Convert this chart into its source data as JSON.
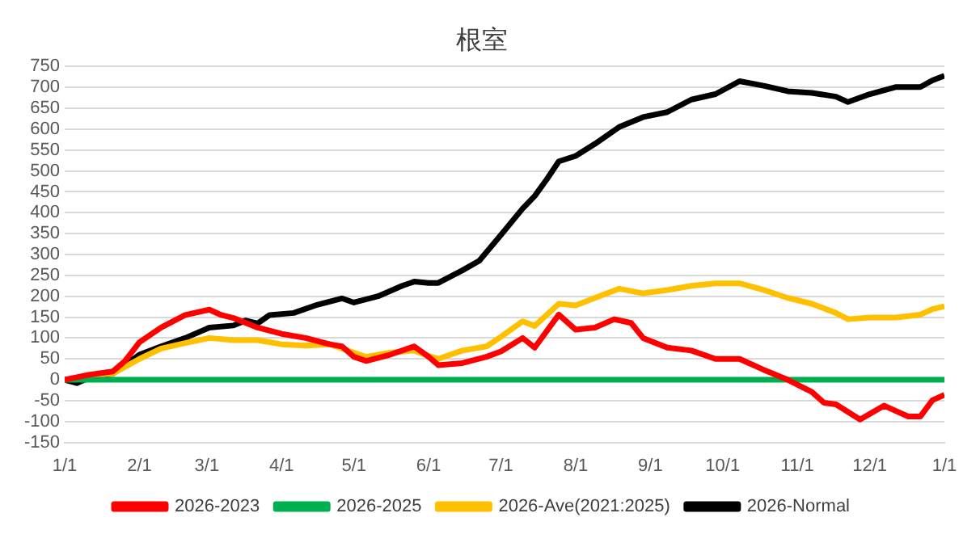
{
  "chart_data": {
    "type": "line",
    "title": "根室",
    "xlim": [
      "2026-01-01",
      "2027-01-01"
    ],
    "xticks": [
      {
        "value": "2026-01-01",
        "label": "1/1"
      },
      {
        "value": "2026-02-01",
        "label": "2/1"
      },
      {
        "value": "2026-03-01",
        "label": "3/1"
      },
      {
        "value": "2026-04-01",
        "label": "4/1"
      },
      {
        "value": "2026-05-01",
        "label": "5/1"
      },
      {
        "value": "2026-06-01",
        "label": "6/1"
      },
      {
        "value": "2026-07-01",
        "label": "7/1"
      },
      {
        "value": "2026-08-01",
        "label": "8/1"
      },
      {
        "value": "2026-09-01",
        "label": "9/1"
      },
      {
        "value": "2026-10-01",
        "label": "10/1"
      },
      {
        "value": "2026-11-01",
        "label": "11/1"
      },
      {
        "value": "2026-12-01",
        "label": "12/1"
      },
      {
        "value": "2027-01-01",
        "label": "1/1"
      }
    ],
    "ylim": [
      -150,
      750
    ],
    "yticks": [
      -150,
      -100,
      -50,
      0,
      50,
      100,
      150,
      200,
      250,
      300,
      350,
      400,
      450,
      500,
      550,
      600,
      650,
      700,
      750
    ],
    "grid": "y",
    "legend": "bottom",
    "marker": "none",
    "line_style": "solid",
    "series": [
      {
        "name": "2026-2023",
        "color": "#ff0000",
        "x": [
          "2026-01-01",
          "2026-01-11",
          "2026-01-21",
          "2026-01-26",
          "2026-02-01",
          "2026-02-10",
          "2026-02-20",
          "2026-03-02",
          "2026-03-07",
          "2026-03-12",
          "2026-03-22",
          "2026-04-01",
          "2026-04-11",
          "2026-04-21",
          "2026-04-26",
          "2026-05-01",
          "2026-05-06",
          "2026-05-16",
          "2026-05-26",
          "2026-06-01",
          "2026-06-05",
          "2026-06-15",
          "2026-06-25",
          "2026-07-01",
          "2026-07-10",
          "2026-07-15",
          "2026-07-25",
          "2026-08-01",
          "2026-08-09",
          "2026-08-17",
          "2026-08-24",
          "2026-08-29",
          "2026-09-08",
          "2026-09-18",
          "2026-09-28",
          "2026-10-08",
          "2026-10-18",
          "2026-10-28",
          "2026-11-07",
          "2026-11-12",
          "2026-11-17",
          "2026-11-27",
          "2026-12-07",
          "2026-12-17",
          "2026-12-22",
          "2026-12-27",
          "2027-01-01"
        ],
        "values": [
          0,
          12,
          20,
          45,
          90,
          125,
          155,
          168,
          155,
          148,
          125,
          110,
          100,
          85,
          80,
          55,
          45,
          60,
          80,
          55,
          35,
          40,
          55,
          68,
          100,
          77,
          156,
          120,
          125,
          145,
          136,
          100,
          77,
          70,
          50,
          50,
          24,
          0,
          -29,
          -55,
          -59,
          -95,
          -62,
          -88,
          -88,
          -49,
          -36
        ]
      },
      {
        "name": "2026-2025",
        "color": "#00b050",
        "x": [
          "2026-01-01",
          "2027-01-01"
        ],
        "values": [
          0,
          0
        ]
      },
      {
        "name": "2026-Ave(2021:2025)",
        "color": "#ffc000",
        "x": [
          "2026-01-01",
          "2026-01-11",
          "2026-01-21",
          "2026-02-01",
          "2026-02-10",
          "2026-02-20",
          "2026-03-02",
          "2026-03-12",
          "2026-03-22",
          "2026-04-01",
          "2026-04-11",
          "2026-04-21",
          "2026-05-01",
          "2026-05-06",
          "2026-05-16",
          "2026-05-26",
          "2026-06-01",
          "2026-06-05",
          "2026-06-15",
          "2026-06-25",
          "2026-07-01",
          "2026-07-10",
          "2026-07-15",
          "2026-07-25",
          "2026-08-01",
          "2026-08-09",
          "2026-08-19",
          "2026-08-29",
          "2026-09-08",
          "2026-09-18",
          "2026-09-28",
          "2026-10-08",
          "2026-10-18",
          "2026-10-28",
          "2026-11-07",
          "2026-11-17",
          "2026-11-22",
          "2026-12-01",
          "2026-12-12",
          "2026-12-22",
          "2026-12-27",
          "2027-01-01"
        ],
        "values": [
          0,
          10,
          15,
          50,
          75,
          88,
          100,
          95,
          95,
          85,
          82,
          85,
          65,
          55,
          65,
          70,
          57,
          50,
          70,
          80,
          103,
          140,
          129,
          182,
          178,
          196,
          218,
          207,
          215,
          225,
          231,
          231,
          215,
          196,
          182,
          160,
          145,
          149,
          149,
          156,
          169,
          176
        ]
      },
      {
        "name": "2026-Normal",
        "color": "#000000",
        "x": [
          "2026-01-01",
          "2026-01-06",
          "2026-01-11",
          "2026-01-21",
          "2026-02-01",
          "2026-02-10",
          "2026-02-20",
          "2026-03-02",
          "2026-03-12",
          "2026-03-17",
          "2026-03-22",
          "2026-03-27",
          "2026-04-06",
          "2026-04-16",
          "2026-04-26",
          "2026-05-01",
          "2026-05-11",
          "2026-05-21",
          "2026-05-26",
          "2026-06-01",
          "2026-06-05",
          "2026-06-15",
          "2026-06-22",
          "2026-07-01",
          "2026-07-10",
          "2026-07-15",
          "2026-07-20",
          "2026-07-25",
          "2026-08-01",
          "2026-08-09",
          "2026-08-19",
          "2026-08-29",
          "2026-09-08",
          "2026-09-18",
          "2026-09-28",
          "2026-10-08",
          "2026-10-18",
          "2026-10-28",
          "2026-11-07",
          "2026-11-17",
          "2026-11-22",
          "2026-12-01",
          "2026-12-12",
          "2026-12-22",
          "2026-12-27",
          "2027-01-01"
        ],
        "values": [
          0,
          -8,
          5,
          15,
          60,
          80,
          100,
          125,
          130,
          142,
          135,
          155,
          160,
          180,
          195,
          185,
          200,
          225,
          235,
          232,
          232,
          262,
          285,
          347,
          410,
          440,
          480,
          523,
          536,
          565,
          605,
          629,
          641,
          671,
          684,
          715,
          704,
          691,
          687,
          678,
          665,
          684,
          701,
          701,
          717,
          728
        ]
      }
    ]
  }
}
